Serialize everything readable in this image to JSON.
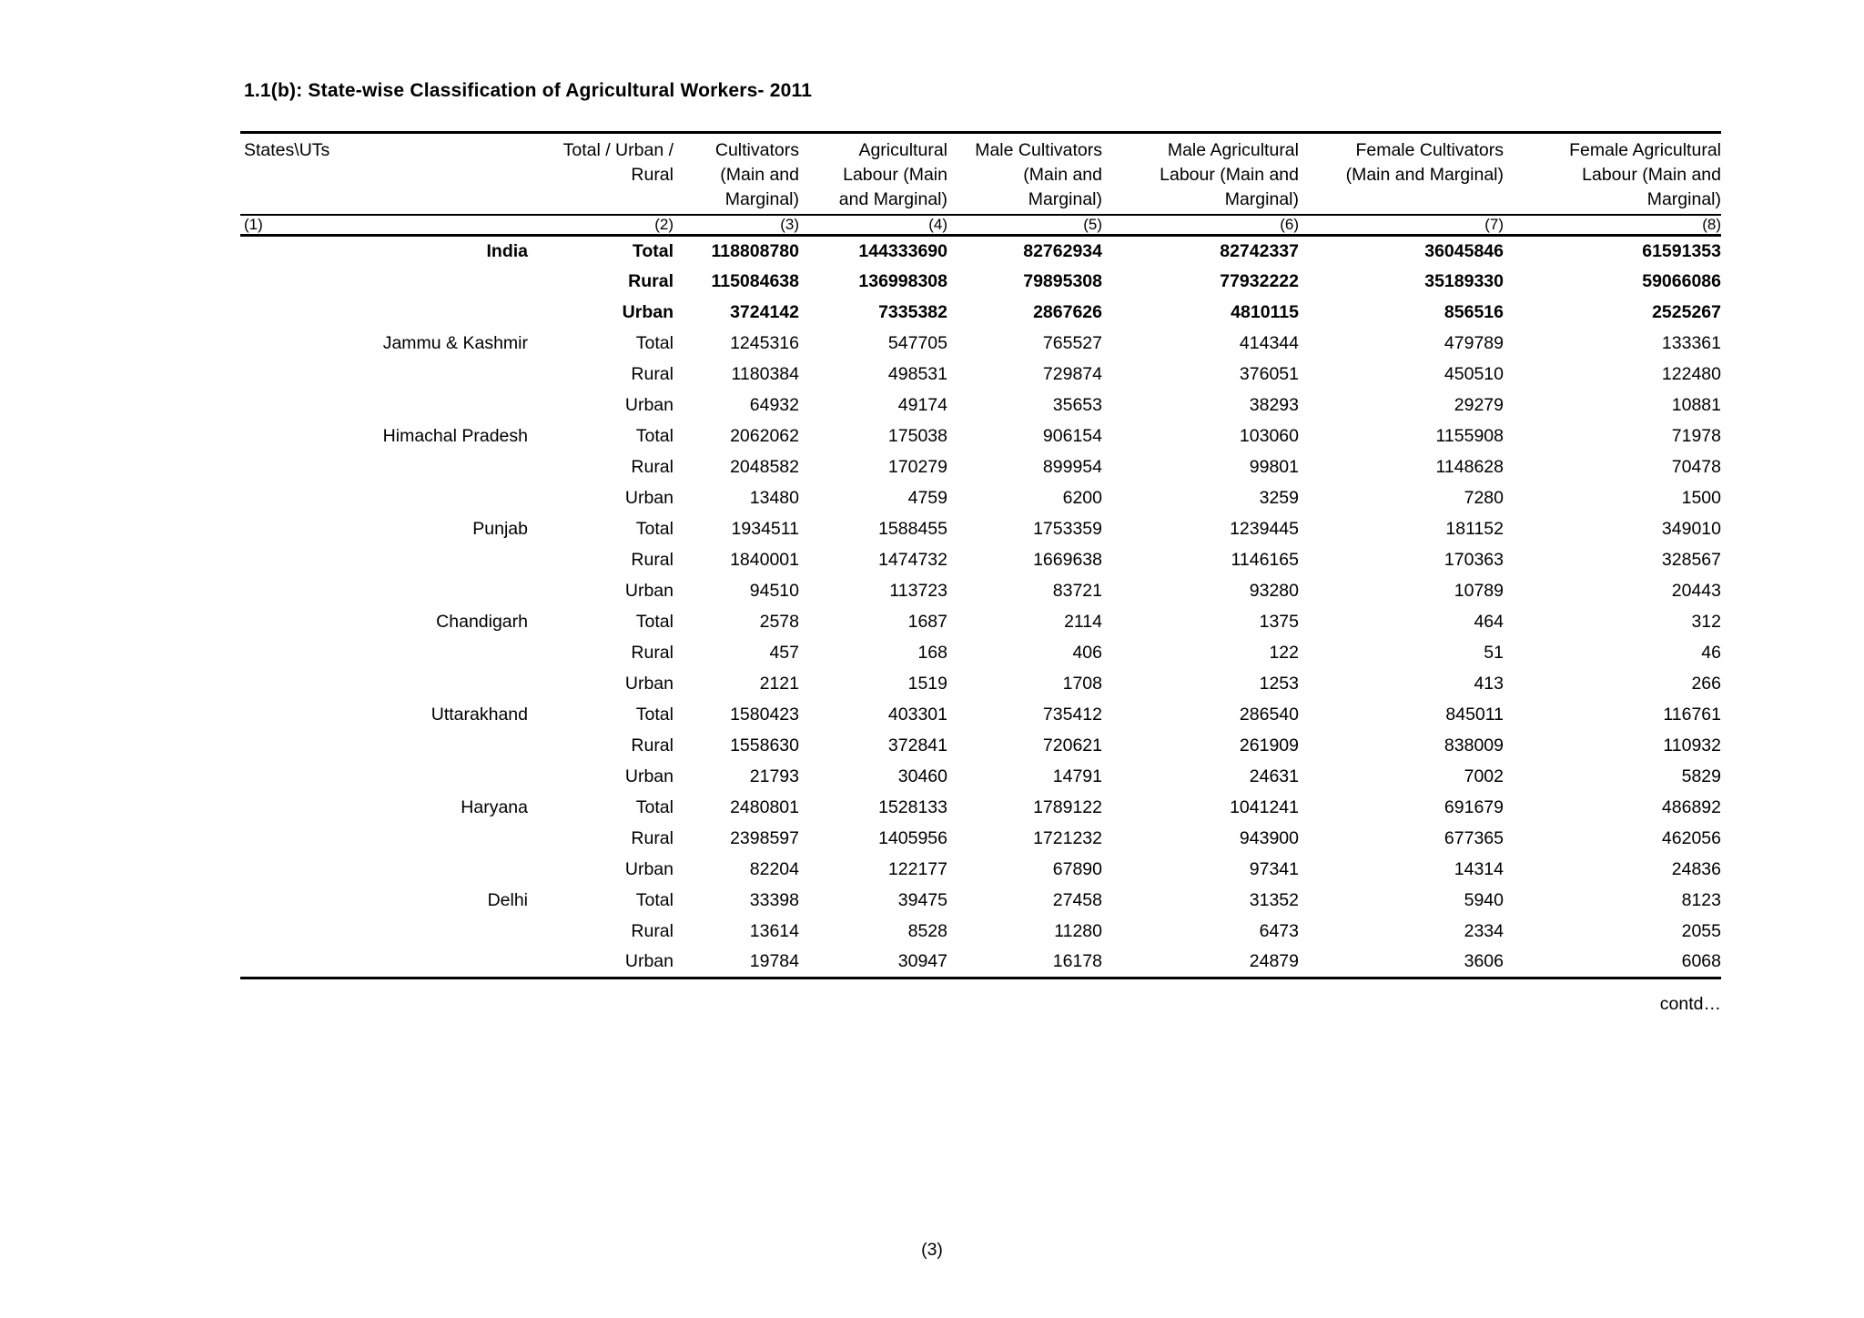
{
  "page": {
    "title": "1.1(b): State-wise Classification of Agricultural Workers- 2011",
    "contd_note": "contd…",
    "page_number": "(3)"
  },
  "table": {
    "columns": [
      "States\\UTs",
      "Total / Urban /\nRural",
      "Cultivators\n(Main and\nMarginal)",
      "Agricultural\nLabour (Main\nand Marginal)",
      "Male Cultivators\n(Main and\nMarginal)",
      "Male Agricultural\nLabour (Main and\nMarginal)",
      "Female Cultivators\n(Main and Marginal)",
      "Female Agricultural\nLabour (Main and\nMarginal)"
    ],
    "column_numbers": [
      "(1)",
      "(2)",
      "(3)",
      "(4)",
      "(5)",
      "(6)",
      "(7)",
      "(8)"
    ],
    "states": [
      {
        "name": "India",
        "bold": true,
        "rows": [
          {
            "label": "Total",
            "values": [
              118808780,
              144333690,
              82762934,
              82742337,
              36045846,
              61591353
            ]
          },
          {
            "label": "Rural",
            "values": [
              115084638,
              136998308,
              79895308,
              77932222,
              35189330,
              59066086
            ]
          },
          {
            "label": "Urban",
            "values": [
              3724142,
              7335382,
              2867626,
              4810115,
              856516,
              2525267
            ]
          }
        ]
      },
      {
        "name": "Jammu & Kashmir",
        "bold": false,
        "rows": [
          {
            "label": "Total",
            "values": [
              1245316,
              547705,
              765527,
              414344,
              479789,
              133361
            ]
          },
          {
            "label": "Rural",
            "values": [
              1180384,
              498531,
              729874,
              376051,
              450510,
              122480
            ]
          },
          {
            "label": "Urban",
            "values": [
              64932,
              49174,
              35653,
              38293,
              29279,
              10881
            ]
          }
        ]
      },
      {
        "name": "Himachal Pradesh",
        "bold": false,
        "rows": [
          {
            "label": "Total",
            "values": [
              2062062,
              175038,
              906154,
              103060,
              1155908,
              71978
            ]
          },
          {
            "label": "Rural",
            "values": [
              2048582,
              170279,
              899954,
              99801,
              1148628,
              70478
            ]
          },
          {
            "label": "Urban",
            "values": [
              13480,
              4759,
              6200,
              3259,
              7280,
              1500
            ]
          }
        ]
      },
      {
        "name": "Punjab",
        "bold": false,
        "rows": [
          {
            "label": "Total",
            "values": [
              1934511,
              1588455,
              1753359,
              1239445,
              181152,
              349010
            ]
          },
          {
            "label": "Rural",
            "values": [
              1840001,
              1474732,
              1669638,
              1146165,
              170363,
              328567
            ]
          },
          {
            "label": "Urban",
            "values": [
              94510,
              113723,
              83721,
              93280,
              10789,
              20443
            ]
          }
        ]
      },
      {
        "name": "Chandigarh",
        "bold": false,
        "rows": [
          {
            "label": "Total",
            "values": [
              2578,
              1687,
              2114,
              1375,
              464,
              312
            ]
          },
          {
            "label": "Rural",
            "values": [
              457,
              168,
              406,
              122,
              51,
              46
            ]
          },
          {
            "label": "Urban",
            "values": [
              2121,
              1519,
              1708,
              1253,
              413,
              266
            ]
          }
        ]
      },
      {
        "name": "Uttarakhand",
        "bold": false,
        "rows": [
          {
            "label": "Total",
            "values": [
              1580423,
              403301,
              735412,
              286540,
              845011,
              116761
            ]
          },
          {
            "label": "Rural",
            "values": [
              1558630,
              372841,
              720621,
              261909,
              838009,
              110932
            ]
          },
          {
            "label": "Urban",
            "values": [
              21793,
              30460,
              14791,
              24631,
              7002,
              5829
            ]
          }
        ]
      },
      {
        "name": "Haryana",
        "bold": false,
        "rows": [
          {
            "label": "Total",
            "values": [
              2480801,
              1528133,
              1789122,
              1041241,
              691679,
              486892
            ]
          },
          {
            "label": "Rural",
            "values": [
              2398597,
              1405956,
              1721232,
              943900,
              677365,
              462056
            ]
          },
          {
            "label": "Urban",
            "values": [
              82204,
              122177,
              67890,
              97341,
              14314,
              24836
            ]
          }
        ]
      },
      {
        "name": "Delhi",
        "bold": false,
        "rows": [
          {
            "label": "Total",
            "values": [
              33398,
              39475,
              27458,
              31352,
              5940,
              8123
            ]
          },
          {
            "label": "Rural",
            "values": [
              13614,
              8528,
              11280,
              6473,
              2334,
              2055
            ]
          },
          {
            "label": "Urban",
            "values": [
              19784,
              30947,
              16178,
              24879,
              3606,
              6068
            ]
          }
        ]
      }
    ]
  }
}
